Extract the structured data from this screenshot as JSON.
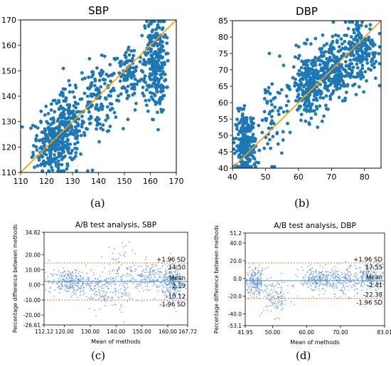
{
  "labels": [
    "(a)",
    "(b)",
    "(c)",
    "(d)"
  ],
  "colors": {
    "point": "#1f77b4",
    "identity_line": "#f5a000",
    "bland_point": "#5b8fd0",
    "sd_line": "#e67a2e",
    "mean_line": "#4a90d9"
  },
  "chart_data": [
    {
      "type": "scatter",
      "title": "SBP",
      "xlim": [
        110,
        170
      ],
      "ylim": [
        110,
        170
      ],
      "xticks": [
        "110",
        "120",
        "130",
        "140",
        "150",
        "160",
        "170"
      ],
      "yticks": [
        "110",
        "120",
        "130",
        "140",
        "150",
        "160",
        "170"
      ],
      "identity_line": true,
      "clusters": [
        {
          "cx": 122,
          "cy": 121,
          "sx": 3.5,
          "sy": 6,
          "n": 240
        },
        {
          "cx": 128,
          "cy": 128,
          "sx": 3.5,
          "sy": 7,
          "n": 180
        },
        {
          "cx": 140,
          "cy": 139,
          "sx": 4,
          "sy": 7,
          "n": 140
        },
        {
          "cx": 152,
          "cy": 148,
          "sx": 3.5,
          "sy": 6,
          "n": 120
        },
        {
          "cx": 162,
          "cy": 153,
          "sx": 2,
          "sy": 10,
          "n": 260
        }
      ]
    },
    {
      "type": "scatter",
      "title": "DBP",
      "xlim": [
        40,
        85
      ],
      "ylim": [
        40,
        85
      ],
      "xticks": [
        "40",
        "50",
        "60",
        "70",
        "80"
      ],
      "yticks": [
        "40",
        "45",
        "50",
        "55",
        "60",
        "65",
        "70",
        "75",
        "80",
        "85"
      ],
      "identity_line": true,
      "clusters": [
        {
          "cx": 44,
          "cy": 47,
          "sx": 1.5,
          "sy": 5,
          "n": 260
        },
        {
          "cx": 52,
          "cy": 56,
          "sx": 2,
          "sy": 7,
          "n": 60
        },
        {
          "cx": 63,
          "cy": 65,
          "sx": 2.5,
          "sy": 5,
          "n": 240
        },
        {
          "cx": 70,
          "cy": 70,
          "sx": 3,
          "sy": 5,
          "n": 240
        },
        {
          "cx": 79,
          "cy": 76,
          "sx": 2.5,
          "sy": 5,
          "n": 180
        }
      ]
    },
    {
      "type": "scatter",
      "title": "A/B test analysis, SBP",
      "xlabel": "Mean of methods",
      "ylabel": "Percentage difference between methods",
      "xlim": [
        112.12,
        167.72
      ],
      "ylim": [
        -26.61,
        34.82
      ],
      "xticks": [
        {
          "v": 112.12,
          "t": "112.12"
        },
        {
          "v": 120,
          "t": "120.00"
        },
        {
          "v": 130,
          "t": "130.00"
        },
        {
          "v": 140,
          "t": "140.00"
        },
        {
          "v": 150,
          "t": "150.00"
        },
        {
          "v": 160,
          "t": "160.00"
        },
        {
          "v": 167.72,
          "t": "167.72"
        }
      ],
      "yticks": [
        {
          "v": 34.82,
          "t": "34.82"
        },
        {
          "v": 20,
          "t": "20.00"
        },
        {
          "v": 10,
          "t": "10.00"
        },
        {
          "v": 0,
          "t": "0.00"
        },
        {
          "v": -10,
          "t": "-10.00"
        },
        {
          "v": -20,
          "t": "-20.00"
        },
        {
          "v": -26.61,
          "t": "-26.61"
        }
      ],
      "mean": 2.19,
      "upper": 14.5,
      "lower": -10.12,
      "annotations": {
        "upper_label": "+1.96 SD",
        "upper_value": "14.50",
        "mean_label": "Mean",
        "mean_value": "2.19",
        "lower_value": "-10.12",
        "lower_label": "-1.96 SD"
      },
      "clusters": [
        {
          "cx": 122,
          "cy": 2,
          "sx": 4,
          "sy": 4,
          "n": 260
        },
        {
          "cx": 133,
          "cy": -3,
          "sx": 4,
          "sy": 6,
          "n": 160
        },
        {
          "cx": 143,
          "cy": 6,
          "sx": 3,
          "sy": 10,
          "n": 140
        },
        {
          "cx": 153,
          "cy": 6,
          "sx": 3,
          "sy": 5,
          "n": 150
        },
        {
          "cx": 162,
          "cy": 1,
          "sx": 2,
          "sy": 6,
          "n": 260
        }
      ]
    },
    {
      "type": "scatter",
      "title": "A/B test analysis, DBP",
      "xlabel": "Mean of methods",
      "ylabel": "Percentage difference between methods",
      "xlim": [
        41.95,
        83.01
      ],
      "ylim": [
        -53.1,
        51.2
      ],
      "xticks": [
        {
          "v": 41.95,
          "t": "41.95"
        },
        {
          "v": 50,
          "t": "50.00"
        },
        {
          "v": 60,
          "t": "60.00"
        },
        {
          "v": 70,
          "t": "70.00"
        },
        {
          "v": 83.01,
          "t": "83.01"
        }
      ],
      "yticks": [
        {
          "v": 51.2,
          "t": "51.2"
        },
        {
          "v": 40,
          "t": "40.0"
        },
        {
          "v": 20,
          "t": "20.0"
        },
        {
          "v": 0,
          "t": "0.0"
        },
        {
          "v": -20,
          "t": "-20.0"
        },
        {
          "v": -40,
          "t": "-40.0"
        },
        {
          "v": -53.1,
          "t": "-53.1"
        }
      ],
      "mean": -2.41,
      "upper": 17.55,
      "lower": -22.38,
      "annotations": {
        "upper_label": "+1.96 SD",
        "upper_value": "17.55",
        "mean_label": "Mean",
        "mean_value": "-2.41",
        "lower_value": "-22.38",
        "lower_label": "-1.96 SD"
      },
      "clusters": [
        {
          "cx": 45,
          "cy": -4,
          "sx": 1.5,
          "sy": 8,
          "n": 200
        },
        {
          "cx": 51,
          "cy": -22,
          "sx": 2,
          "sy": 10,
          "n": 120
        },
        {
          "cx": 63,
          "cy": -1,
          "sx": 2.5,
          "sy": 7,
          "n": 200
        },
        {
          "cx": 71,
          "cy": -3,
          "sx": 3,
          "sy": 8,
          "n": 200
        },
        {
          "cx": 79,
          "cy": 3,
          "sx": 2,
          "sy": 7,
          "n": 160
        }
      ]
    }
  ]
}
